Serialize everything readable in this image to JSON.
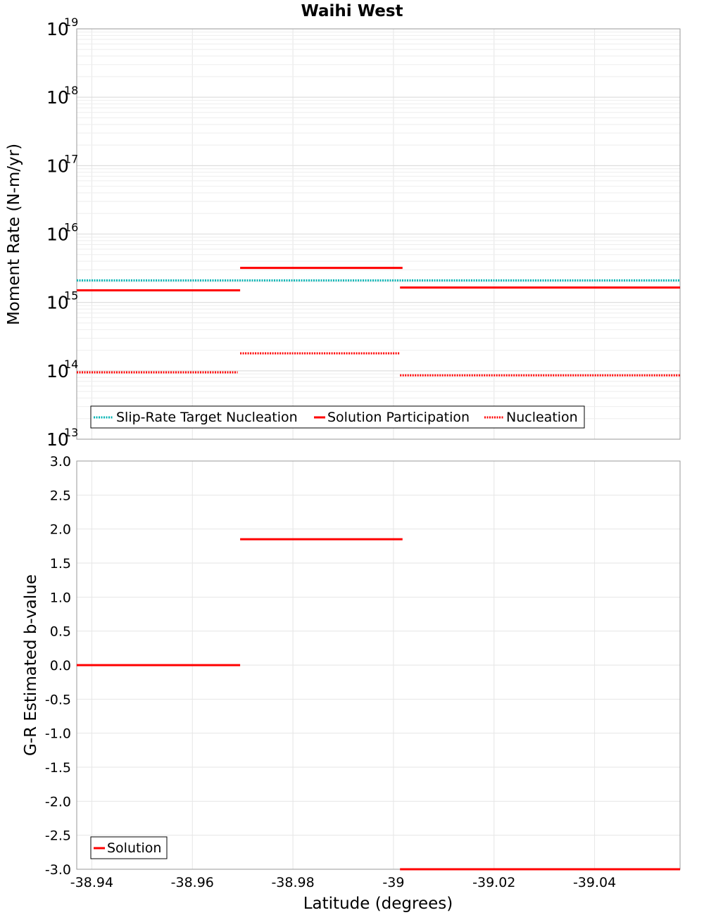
{
  "chart_data": [
    {
      "type": "line",
      "title": "Waihi West",
      "xlabel": "",
      "ylabel": "Moment Rate (N-m/yr)",
      "yscale": "log",
      "ylim": [
        10000000000000.0,
        1e+19
      ],
      "xlim": [
        -38.937,
        -39.057
      ],
      "x_ticks": [
        "-38.94",
        "-38.96",
        "-38.98",
        "-39",
        "-39.02",
        "-39.04"
      ],
      "y_tick_exponents": [
        "13",
        "14",
        "15",
        "16",
        "17",
        "18",
        "19"
      ],
      "y_tick_base": "10",
      "grid": true,
      "legend_position": "bottom-left",
      "colors": {
        "target": "#00b4b4",
        "solution": "#ff0000"
      },
      "series": [
        {
          "name": "Slip-Rate Target Nucleation",
          "style": "dotted",
          "color": "#00b4b4",
          "segments": [
            {
              "x": [
                -38.937,
                -39.057
              ],
              "y": 2100000000000000.0
            }
          ]
        },
        {
          "name": "Solution Participation",
          "style": "solid",
          "color": "#ff0000",
          "segments": [
            {
              "x": [
                -38.937,
                -38.9695
              ],
              "y": 1500000000000000.0
            },
            {
              "x": [
                -38.9695,
                -39.0018
              ],
              "y": 3200000000000000.0
            },
            {
              "x": [
                -39.0013,
                -39.057
              ],
              "y": 1650000000000000.0
            }
          ]
        },
        {
          "name": "Nucleation",
          "style": "dotted",
          "color": "#ff0000",
          "segments": [
            {
              "x": [
                -38.937,
                -38.969
              ],
              "y": 95000000000000.0
            },
            {
              "x": [
                -38.9695,
                -39.0013
              ],
              "y": 180000000000000.0
            },
            {
              "x": [
                -39.0013,
                -39.057
              ],
              "y": 86000000000000.0
            }
          ]
        }
      ]
    },
    {
      "type": "line",
      "title": "",
      "xlabel": "Latitude (degrees)",
      "ylabel": "G-R Estimated b-value",
      "ylim": [
        -3.0,
        3.0
      ],
      "xlim": [
        -38.937,
        -39.057
      ],
      "x_ticks": [
        "-38.94",
        "-38.96",
        "-38.98",
        "-39",
        "-39.02",
        "-39.04"
      ],
      "y_ticks": [
        "-3.0",
        "-2.5",
        "-2.0",
        "-1.5",
        "-1.0",
        "-0.5",
        "0.0",
        "0.5",
        "1.0",
        "1.5",
        "2.0",
        "2.5",
        "3.0"
      ],
      "grid": true,
      "legend_position": "bottom-left",
      "series": [
        {
          "name": "Solution",
          "style": "solid",
          "color": "#ff0000",
          "segments": [
            {
              "x": [
                -38.937,
                -38.9695
              ],
              "y": 0.0
            },
            {
              "x": [
                -38.9695,
                -39.0018
              ],
              "y": 1.85
            },
            {
              "x": [
                -39.0013,
                -39.057
              ],
              "y": -3.0
            }
          ]
        }
      ]
    }
  ]
}
